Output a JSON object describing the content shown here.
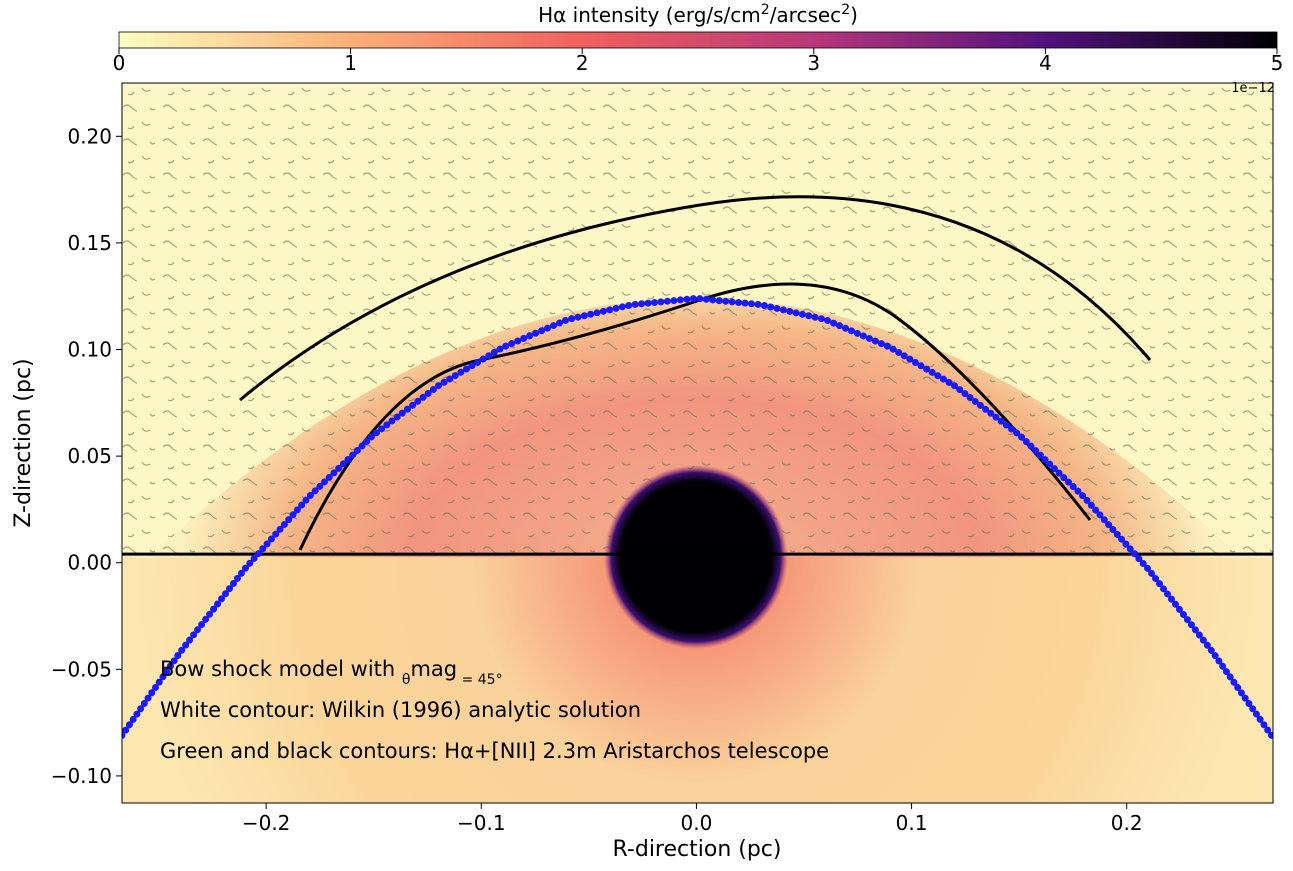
{
  "chart_data": {
    "type": "image",
    "colorbar": {
      "label_parts": [
        "Hα intensity (erg/s/cm",
        "2",
        "/arcsec",
        "2",
        ")"
      ],
      "lim": [
        0,
        5
      ],
      "ticks": [
        0,
        1,
        2,
        3,
        4,
        5
      ],
      "offset_text": "1e−12"
    },
    "x_label": "R-direction (pc)",
    "y_label": "Z-direction (pc)",
    "xlim": [
      -0.267,
      0.268
    ],
    "ylim": [
      -0.1127,
      0.225
    ],
    "xticks": [
      {
        "value": -0.2,
        "label": "−0.2"
      },
      {
        "value": -0.1,
        "label": "−0.1"
      },
      {
        "value": 0,
        "label": "0.0"
      },
      0.1,
      0.2
    ],
    "yticks": [
      {
        "value": -0.1,
        "label": "−0.10"
      },
      {
        "value": -0.05,
        "label": "−0.05"
      },
      {
        "value": 0,
        "label": "0.00"
      },
      {
        "value": 0.05,
        "label": "0.05"
      },
      {
        "value": 0.1,
        "label": "0.10"
      },
      {
        "value": 0.15,
        "label": "0.15"
      },
      {
        "value": 0.2,
        "label": "0.20"
      }
    ],
    "hline": 0.004,
    "series": [
      {
        "name": "Wilkin (1996) analytic solution",
        "color": "#1a1aff",
        "x": [
          -0.267,
          -0.24,
          -0.21,
          -0.18,
          -0.15,
          -0.12,
          -0.09,
          -0.06,
          -0.03,
          0,
          0.03,
          0.06,
          0.09,
          0.12,
          0.15,
          0.18,
          0.21,
          0.24,
          0.268
        ],
        "values": [
          -0.081,
          -0.042,
          -0.003,
          0.031,
          0.06,
          0.083,
          0.101,
          0.114,
          0.121,
          0.124,
          0.121,
          0.114,
          0.101,
          0.083,
          0.06,
          0.031,
          -0.003,
          -0.042,
          -0.082
        ]
      }
    ],
    "annotations": [
      [
        "Bow shock model with ",
        "θ",
        "mag",
        " = 45°"
      ],
      [
        "White contour: Wilkin (1996) analytic solution"
      ],
      [
        "Green and black contours: Hα+[NII] 2.3m Aristarchos telescope"
      ]
    ]
  }
}
